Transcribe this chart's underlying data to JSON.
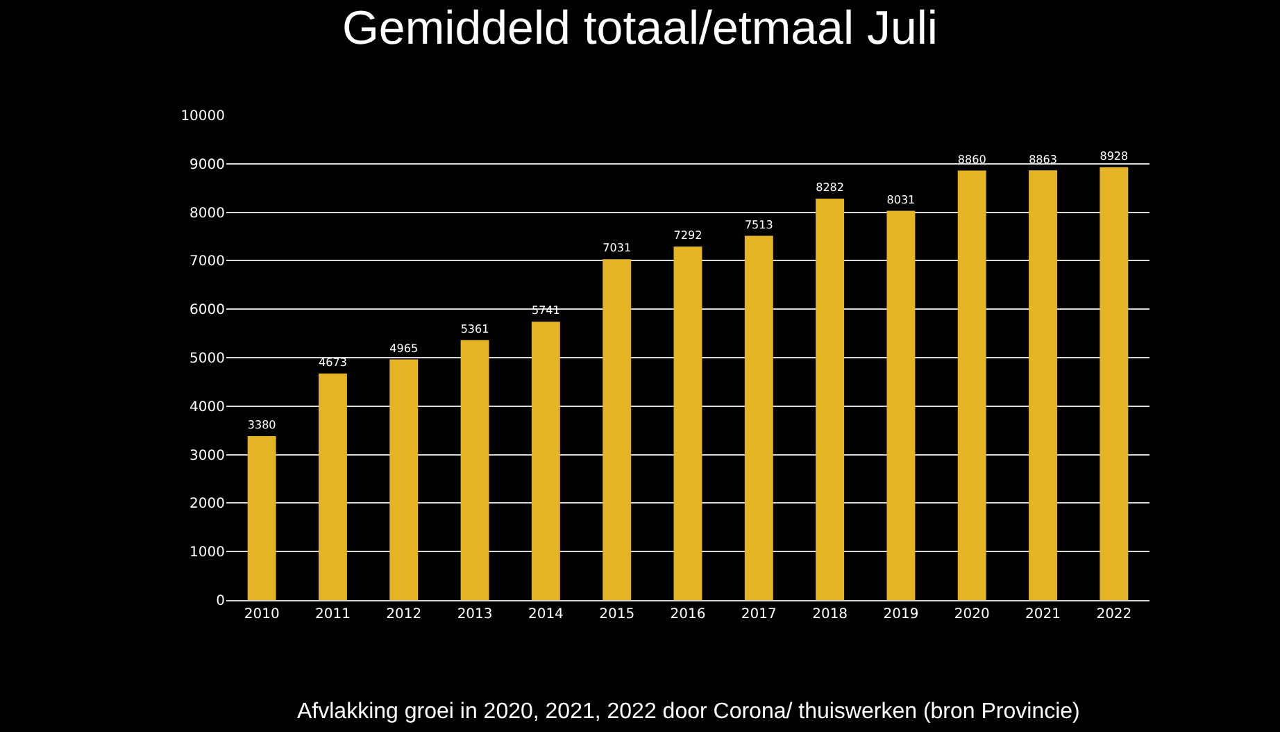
{
  "chart_data": {
    "type": "bar",
    "title": "Gemiddeld totaal/etmaal Juli",
    "categories": [
      "2010",
      "2011",
      "2012",
      "2013",
      "2014",
      "2015",
      "2016",
      "2017",
      "2018",
      "2019",
      "2020",
      "2021",
      "2022"
    ],
    "values": [
      3380,
      4673,
      4965,
      5361,
      5741,
      7031,
      7292,
      7513,
      8282,
      8031,
      8860,
      8863,
      8928
    ],
    "color": "#e4b425",
    "ylim": [
      0,
      10000
    ],
    "yticks": [
      0,
      1000,
      2000,
      3000,
      4000,
      5000,
      6000,
      7000,
      8000,
      9000,
      10000
    ],
    "grid": "y",
    "data_labels": true,
    "annotations": [
      "Afvlakking groei in 2020, 2021, 2022 door Corona/ thuiswerken (bron Provincie)"
    ]
  }
}
